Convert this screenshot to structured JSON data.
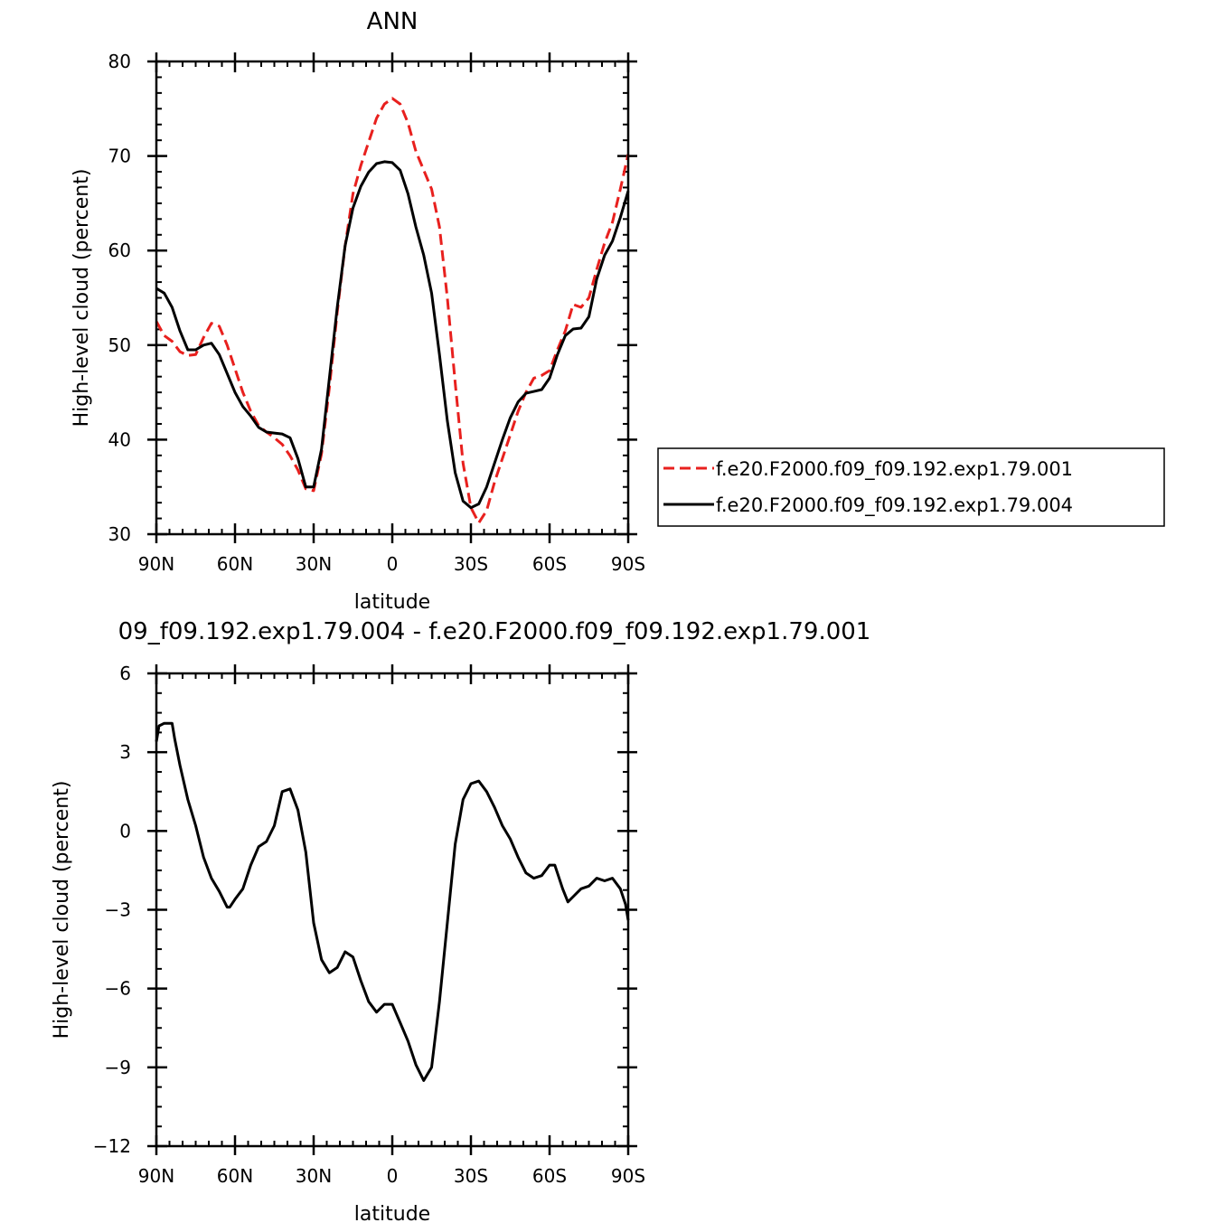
{
  "chart_data": [
    {
      "type": "line",
      "title": "ANN",
      "xlabel": "latitude",
      "ylabel": "High-level cloud (percent)",
      "xlim": [
        90,
        -90
      ],
      "ylim": [
        30,
        80
      ],
      "x_ticks": [
        90,
        60,
        30,
        0,
        -30,
        -60,
        -90
      ],
      "x_ticklabels": [
        "90N",
        "60N",
        "30N",
        "0",
        "30S",
        "60S",
        "90S"
      ],
      "y_ticks": [
        30,
        40,
        50,
        60,
        70,
        80
      ],
      "y_ticklabels": [
        "30",
        "40",
        "50",
        "60",
        "70",
        "80"
      ],
      "legend_position": "right",
      "series": [
        {
          "name": "f.e20.F2000.f09_f09.192.exp1.79.001",
          "color": "#e8201e",
          "dash": "dashed",
          "x": [
            90,
            87,
            84,
            81,
            78,
            75,
            72,
            69,
            66,
            63,
            60,
            57,
            54,
            51,
            48,
            45,
            42,
            39,
            36,
            33,
            30,
            27,
            24,
            21,
            18,
            15,
            12,
            9,
            6,
            3,
            0,
            -3,
            -6,
            -9,
            -12,
            -15,
            -18,
            -21,
            -24,
            -27,
            -30,
            -33,
            -36,
            -39,
            -42,
            -45,
            -48,
            -51,
            -54,
            -57,
            -60,
            -63,
            -66,
            -69,
            -72,
            -75,
            -78,
            -81,
            -84,
            -87,
            -90
          ],
          "y": [
            52.5,
            51.0,
            50.4,
            49.3,
            48.9,
            49.0,
            50.8,
            52.3,
            52.0,
            50.0,
            47.5,
            45.0,
            43.0,
            41.5,
            40.8,
            40.2,
            39.5,
            38.3,
            36.8,
            34.8,
            34.6,
            38.5,
            45.5,
            53.5,
            60.5,
            66.0,
            69.0,
            71.5,
            74.0,
            75.5,
            76.1,
            75.5,
            73.5,
            70.5,
            68.5,
            66.5,
            62.5,
            55.0,
            46.0,
            37.5,
            32.8,
            31.2,
            32.5,
            35.5,
            38.0,
            40.5,
            43.0,
            45.0,
            46.5,
            46.8,
            47.3,
            49.5,
            51.5,
            54.3,
            54.0,
            55.0,
            58.0,
            60.8,
            63.0,
            66.5,
            70.2
          ]
        },
        {
          "name": "f.e20.F2000.f09_f09.192.exp1.79.004",
          "color": "#000000",
          "dash": "solid",
          "x": [
            90,
            87,
            84,
            81,
            78,
            75,
            72,
            69,
            66,
            63,
            60,
            57,
            54,
            51,
            48,
            45,
            42,
            39,
            36,
            33,
            30,
            27,
            24,
            21,
            18,
            15,
            12,
            9,
            6,
            3,
            0,
            -3,
            -6,
            -9,
            -12,
            -15,
            -18,
            -21,
            -24,
            -27,
            -30,
            -33,
            -36,
            -39,
            -42,
            -45,
            -48,
            -51,
            -54,
            -57,
            -60,
            -63,
            -66,
            -69,
            -72,
            -75,
            -78,
            -81,
            -84,
            -87,
            -90
          ],
          "y": [
            56.0,
            55.5,
            54.0,
            51.5,
            49.5,
            49.5,
            50.0,
            50.2,
            49.0,
            47.0,
            45.0,
            43.5,
            42.5,
            41.3,
            40.8,
            40.7,
            40.6,
            40.2,
            38.0,
            35.0,
            35.0,
            39.0,
            46.5,
            54.0,
            60.5,
            64.5,
            66.8,
            68.3,
            69.2,
            69.4,
            69.3,
            68.5,
            66.0,
            62.5,
            59.5,
            55.5,
            49.0,
            42.0,
            36.5,
            33.5,
            32.8,
            33.2,
            35.0,
            37.5,
            40.0,
            42.3,
            44.0,
            44.9,
            45.1,
            45.3,
            46.5,
            49.0,
            51.0,
            51.7,
            51.8,
            53.0,
            57.0,
            59.5,
            61.0,
            63.5,
            66.3
          ]
        }
      ]
    },
    {
      "type": "line",
      "title": "09_f09.192.exp1.79.004 - f.e20.F2000.f09_f09.192.exp1.79.001",
      "xlabel": "latitude",
      "ylabel": "High-level cloud (percent)",
      "xlim": [
        90,
        -90
      ],
      "ylim": [
        -12,
        6
      ],
      "x_ticks": [
        90,
        60,
        30,
        0,
        -30,
        -60,
        -90
      ],
      "x_ticklabels": [
        "90N",
        "60N",
        "30N",
        "0",
        "30S",
        "60S",
        "90S"
      ],
      "y_ticks": [
        -12,
        -9,
        -6,
        -3,
        0,
        3,
        6
      ],
      "y_ticklabels": [
        "−12",
        "−9",
        "−6",
        "−3",
        "0",
        "3",
        "6"
      ],
      "series": [
        {
          "color": "#000000",
          "dash": "solid",
          "x": [
            90,
            89,
            87,
            84,
            83,
            81,
            78,
            75,
            72,
            69,
            66,
            63,
            62,
            60,
            57,
            54,
            51,
            48,
            45,
            42,
            39,
            36,
            33,
            30,
            27,
            24,
            21,
            18,
            15,
            12,
            9,
            6,
            3,
            0,
            -3,
            -6,
            -9,
            -12,
            -15,
            -18,
            -21,
            -24,
            -27,
            -30,
            -33,
            -36,
            -39,
            -42,
            -45,
            -48,
            -51,
            -54,
            -57,
            -60,
            -62,
            -63,
            -65,
            -67,
            -69,
            -72,
            -75,
            -78,
            -81,
            -84,
            -87,
            -89,
            -90
          ],
          "y": [
            3.4,
            4.0,
            4.1,
            4.1,
            3.5,
            2.5,
            1.2,
            0.2,
            -1.0,
            -1.8,
            -2.3,
            -2.9,
            -2.9,
            -2.6,
            -2.2,
            -1.3,
            -0.6,
            -0.4,
            0.2,
            1.5,
            1.6,
            0.8,
            -0.8,
            -3.5,
            -4.9,
            -5.4,
            -5.2,
            -4.6,
            -4.8,
            -5.7,
            -6.5,
            -6.9,
            -6.6,
            -6.6,
            -7.3,
            -8.0,
            -8.9,
            -9.5,
            -9.0,
            -6.5,
            -3.5,
            -0.5,
            1.2,
            1.8,
            1.9,
            1.5,
            0.9,
            0.2,
            -0.3,
            -1.0,
            -1.6,
            -1.8,
            -1.7,
            -1.3,
            -1.3,
            -1.6,
            -2.2,
            -2.7,
            -2.5,
            -2.2,
            -2.1,
            -1.8,
            -1.9,
            -1.8,
            -2.2,
            -2.8,
            -3.4
          ]
        }
      ]
    }
  ]
}
